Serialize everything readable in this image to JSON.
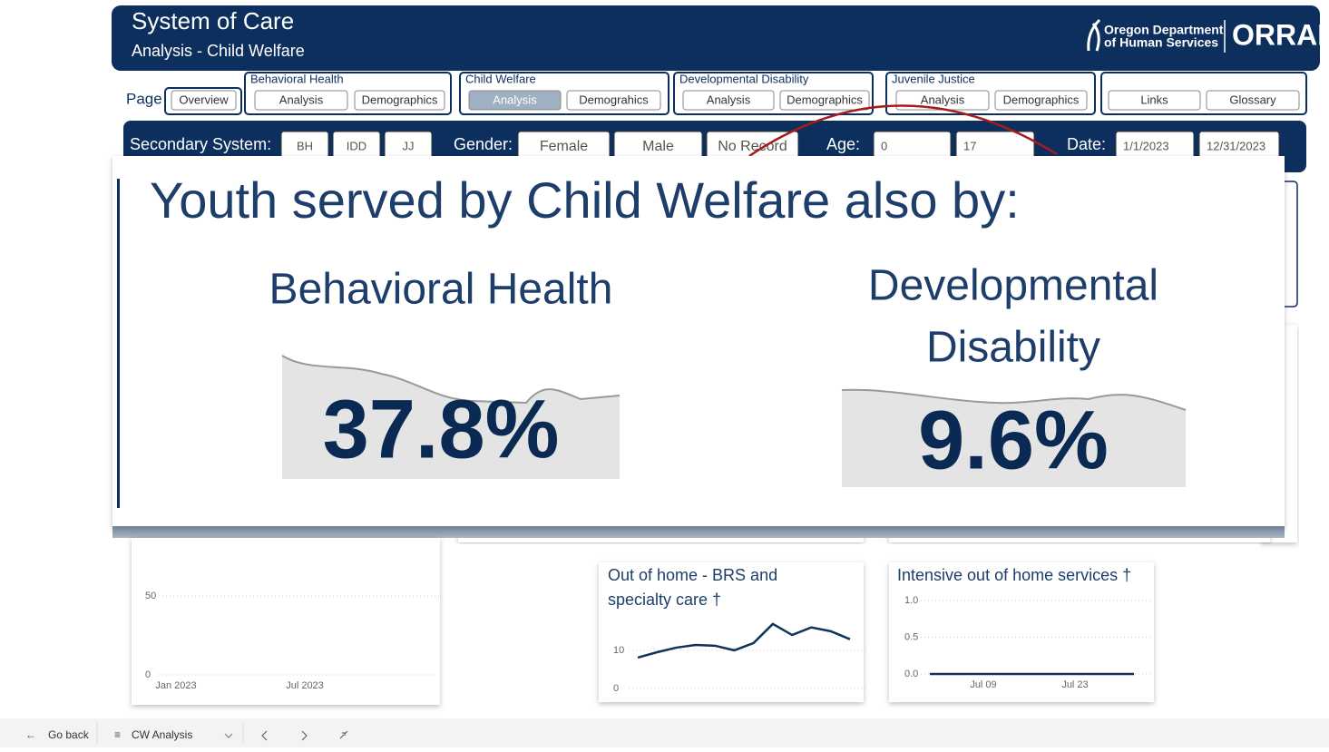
{
  "header": {
    "title": "System of Care",
    "subtitle": "Analysis - Child Welfare",
    "org_line1": "Oregon Department",
    "org_line2": "of Human Services",
    "brand": "ORRAI"
  },
  "nav": {
    "page_label": "Page",
    "overview": "Overview",
    "active": {
      "group": 1,
      "button": 0
    },
    "groups": [
      {
        "name": "Behavioral Health",
        "buttons": [
          "Analysis",
          "Demographics"
        ]
      },
      {
        "name": "Child Welfare",
        "buttons": [
          "Analysis",
          "Demograhics"
        ]
      },
      {
        "name": "Developmental Disability",
        "buttons": [
          "Analysis",
          "Demographics"
        ]
      },
      {
        "name": "Juvenile Justice",
        "buttons": [
          "Analysis",
          "Demographics"
        ]
      }
    ],
    "links": "Links",
    "glossary": "Glossary"
  },
  "filters": {
    "secondary_system": {
      "label": "Secondary System:",
      "options": [
        "BH",
        "IDD",
        "JJ"
      ]
    },
    "gender": {
      "label": "Gender:",
      "options": [
        "Female",
        "Male",
        "No Record"
      ]
    },
    "age": {
      "label": "Age:",
      "min": "0",
      "max": "17"
    },
    "date": {
      "label": "Date:",
      "start": "1/1/2023",
      "end": "12/31/2023"
    }
  },
  "focus_card": {
    "title": "Youth served by Child Welfare also by:",
    "kpis": [
      {
        "label_lines": [
          "Behavioral Health"
        ],
        "value": "37.8%"
      },
      {
        "label_lines": [
          "Developmental",
          "Disability"
        ],
        "value": "9.6%"
      }
    ]
  },
  "charts": {
    "left": {
      "type": "line",
      "values": [],
      "ylim": [
        0,
        80
      ],
      "yticks": [
        0,
        50
      ],
      "x_labels": [
        "Jan 2023",
        "Jul 2023"
      ]
    },
    "out_of_home": {
      "type": "line",
      "title_lines": [
        "Out of home - BRS and",
        "specialty care †"
      ],
      "color": "#12325b",
      "ylim": [
        0,
        19
      ],
      "yticks": [
        0,
        10
      ],
      "values": [
        8.1,
        9.5,
        10.7,
        11.4,
        11.2,
        10,
        11.9,
        16.9,
        14,
        16,
        15,
        12.9
      ]
    },
    "intensive": {
      "type": "line",
      "title_lines": [
        "Intensive out of home services †"
      ],
      "color": "#12325b",
      "ylim": [
        0,
        1
      ],
      "yticks": [
        {
          "value": 0,
          "label": "0.0"
        },
        0.5,
        {
          "value": 1,
          "label": "1.0"
        }
      ],
      "values": [
        0,
        0,
        0,
        0,
        0,
        0
      ],
      "x_labels": [
        "Jul 09",
        "Jul 23"
      ]
    }
  },
  "footer": {
    "back": "Go back",
    "page_menu": "CW Analysis"
  }
}
